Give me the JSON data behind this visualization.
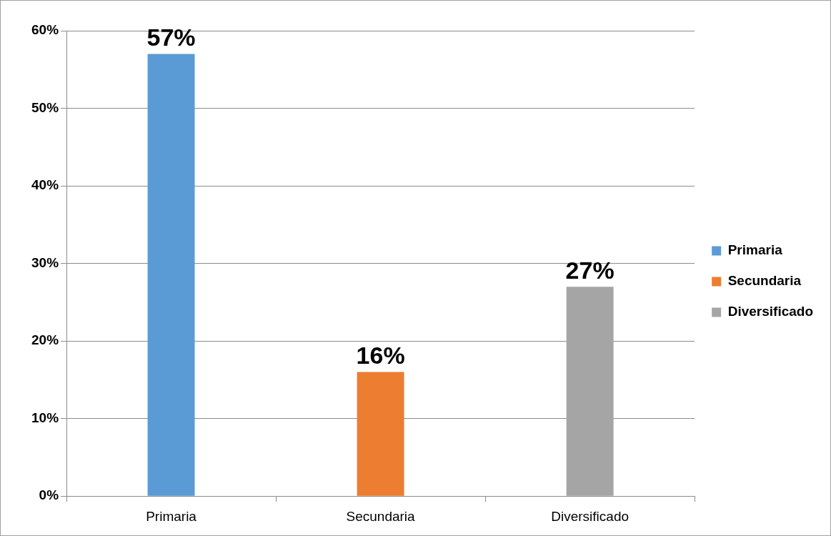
{
  "chart_data": {
    "type": "bar",
    "categories": [
      "Primaria",
      "Secundaria",
      "Diversificado"
    ],
    "series": [
      {
        "name": "Primaria",
        "color": "#5b9bd5",
        "values": [
          57,
          null,
          null
        ]
      },
      {
        "name": "Secundaria",
        "color": "#ed7d31",
        "values": [
          null,
          16,
          null
        ]
      },
      {
        "name": "Diversificado",
        "color": "#a5a5a5",
        "values": [
          null,
          null,
          27
        ]
      }
    ],
    "ylim": [
      0,
      60
    ],
    "yticks": [
      {
        "value": 0,
        "label": "0%"
      },
      {
        "value": 10,
        "label": "10%"
      },
      {
        "value": 20,
        "label": "20%"
      },
      {
        "value": 30,
        "label": "30%"
      },
      {
        "value": 40,
        "label": "40%"
      },
      {
        "value": 50,
        "label": "50%"
      },
      {
        "value": 60,
        "label": "60%"
      }
    ],
    "value_labels": [
      "57%",
      "16%",
      "27%"
    ],
    "grid": "y",
    "legend": "right"
  }
}
